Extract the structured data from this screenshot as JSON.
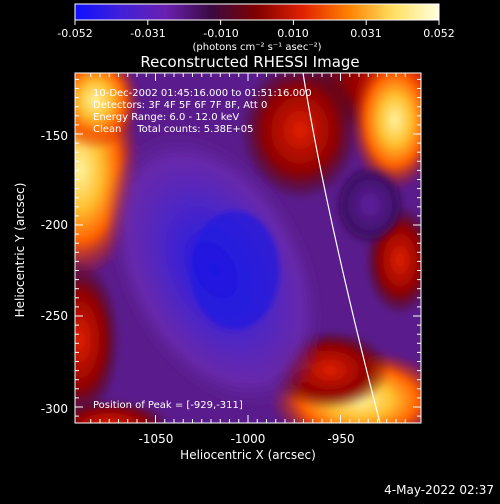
{
  "colorbar": {
    "tick_labels": [
      "-0.052",
      "-0.031",
      "-0.010",
      "0.010",
      "0.031",
      "0.052"
    ],
    "units_label": "(photons cm⁻² s⁻¹ asec⁻²)",
    "stops": [
      "#1010ff",
      "#4020d8",
      "#6a20b0",
      "#3a0a40",
      "#800000",
      "#e02000",
      "#ff8000",
      "#ffe060",
      "#ffffe0"
    ]
  },
  "plot": {
    "title": "Reconstructed RHESSI Image",
    "xlabel": "Heliocentric X (arcsec)",
    "ylabel": "Heliocentric Y (arcsec)",
    "x_ticks": [
      "-1050",
      "-1000",
      "-950"
    ],
    "y_ticks": [
      "-150",
      "-200",
      "-250",
      "-300"
    ],
    "info_lines": [
      "10-Dec-2002 01:45:16.000 to 01:51:16.000",
      "Detectors: 3F 4F 5F 6F 7F 8F, Att 0",
      "Energy Range: 6.0 - 12.0 keV",
      "Clean     Total counts: 5.38E+05"
    ],
    "peak_label": "Position of Peak = [-929,-311]"
  },
  "footer": {
    "timestamp": "4-May-2022 02:37"
  }
}
